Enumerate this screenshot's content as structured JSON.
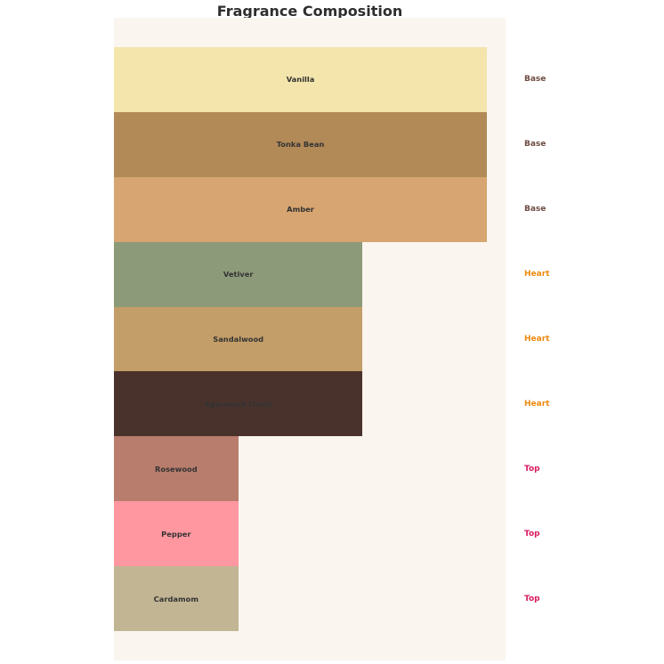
{
  "title": "Fragrance Composition",
  "colors": {
    "page_background": "#ffffff",
    "plot_background": "#faf5ef",
    "title_text": "#2e2e2e",
    "bar_label_text": "#333333"
  },
  "category_label_colors": {
    "Base": "#6d4c41",
    "Heart": "#ee8a0f",
    "Top": "#d81b60"
  },
  "chart_data": {
    "type": "bar",
    "orientation": "horizontal",
    "title": "Fragrance Composition",
    "xlabel": "",
    "ylabel": "",
    "xlim": [
      0,
      3.15
    ],
    "grid": false,
    "axes_visible": false,
    "legend_position": "right-side-text",
    "bars": [
      {
        "label": "Vanilla",
        "category": "Base",
        "value": 3,
        "color": "#f3e5ab"
      },
      {
        "label": "Tonka Bean",
        "category": "Base",
        "value": 3,
        "color": "#b28a58"
      },
      {
        "label": "Amber",
        "category": "Base",
        "value": 3,
        "color": "#d6a571"
      },
      {
        "label": "Vetiver",
        "category": "Heart",
        "value": 2,
        "color": "#8c9a7a"
      },
      {
        "label": "Sandalwood",
        "category": "Heart",
        "value": 2,
        "color": "#c49e68"
      },
      {
        "label": "Agarwood (Oud)",
        "category": "Heart",
        "value": 2,
        "color": "#4a322c"
      },
      {
        "label": "Rosewood",
        "category": "Top",
        "value": 1,
        "color": "#b87d6c"
      },
      {
        "label": "Pepper",
        "category": "Top",
        "value": 1,
        "color": "#ff97a0"
      },
      {
        "label": "Cardamom",
        "category": "Top",
        "value": 1,
        "color": "#c2b594"
      }
    ]
  }
}
